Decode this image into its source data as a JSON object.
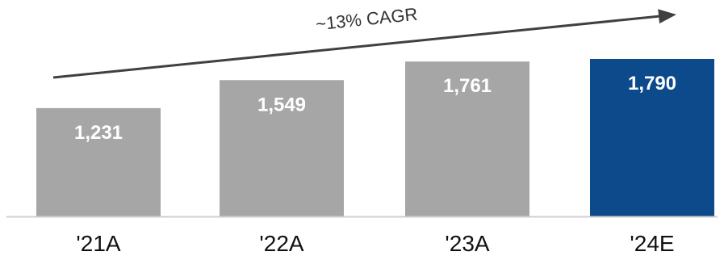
{
  "chart_data": {
    "type": "bar",
    "title": "",
    "xlabel": "",
    "ylabel": "",
    "categories": [
      "'21A",
      "'22A",
      "'23A",
      "'24E"
    ],
    "values": [
      1231,
      1549,
      1761,
      1790
    ],
    "value_labels": [
      "1,231",
      "1,549",
      "1,761",
      "1,790"
    ],
    "bar_colors": [
      "#a6a6a6",
      "#a6a6a6",
      "#a6a6a6",
      "#0d4a8b"
    ],
    "ylim": [
      0,
      1790
    ],
    "grid": false,
    "legend": "none",
    "annotation": {
      "text": "~13% CAGR",
      "kind": "arrow",
      "color": "#404040"
    },
    "axis_color": "#cfcfcf"
  }
}
